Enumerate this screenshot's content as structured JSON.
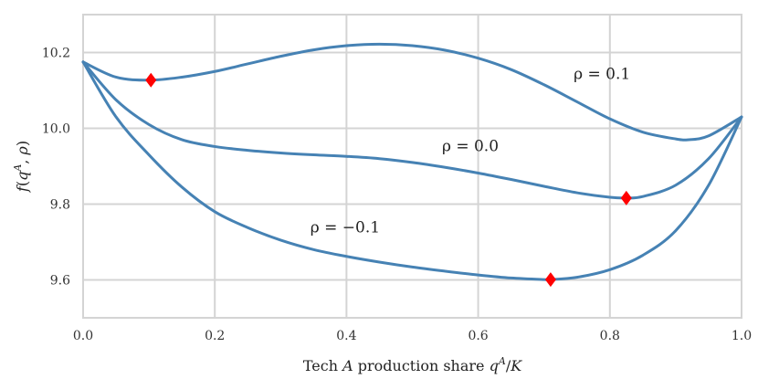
{
  "chart_data": {
    "type": "line",
    "xlabel": "Tech A production share q^A/K",
    "ylabel": "f(q^A, ρ)",
    "xlim": [
      0,
      1
    ],
    "ylim": [
      9.5,
      10.3
    ],
    "xticks": [
      0,
      0.2,
      0.4,
      0.6,
      0.8,
      1
    ],
    "xtick_labels": [
      "0.0",
      "0.2",
      "0.4",
      "0.6",
      "0.8",
      "1.0"
    ],
    "yticks": [
      9.6,
      9.8,
      10.0,
      10.2
    ],
    "ytick_labels": [
      "9.6",
      "9.8",
      "10.0",
      "10.2"
    ],
    "grid": true,
    "line_color": "#4682b4",
    "marker_color": "#ff0000",
    "marker_shape": "diamond",
    "series": [
      {
        "name": "ρ = 0.1",
        "x": [
          0,
          0.05,
          0.1,
          0.15,
          0.2,
          0.25,
          0.3,
          0.35,
          0.4,
          0.45,
          0.5,
          0.55,
          0.6,
          0.65,
          0.7,
          0.75,
          0.8,
          0.85,
          0.9,
          0.92,
          0.95,
          1.0
        ],
        "y": [
          10.175,
          10.135,
          10.127,
          10.135,
          10.15,
          10.17,
          10.19,
          10.207,
          10.218,
          10.222,
          10.218,
          10.206,
          10.185,
          10.155,
          10.115,
          10.07,
          10.025,
          9.99,
          9.972,
          9.97,
          9.98,
          10.03
        ],
        "minimum": {
          "x": 0.103,
          "y": 10.127
        }
      },
      {
        "name": "ρ = 0.0",
        "x": [
          0,
          0.05,
          0.1,
          0.15,
          0.2,
          0.25,
          0.3,
          0.35,
          0.4,
          0.45,
          0.5,
          0.55,
          0.6,
          0.65,
          0.7,
          0.75,
          0.8,
          0.825,
          0.85,
          0.9,
          0.95,
          1.0
        ],
        "y": [
          10.175,
          10.075,
          10.01,
          9.97,
          9.952,
          9.942,
          9.935,
          9.93,
          9.926,
          9.92,
          9.91,
          9.897,
          9.882,
          9.865,
          9.847,
          9.83,
          9.818,
          9.816,
          9.82,
          9.85,
          9.92,
          10.03
        ],
        "minimum": {
          "x": 0.825,
          "y": 9.816
        }
      },
      {
        "name": "ρ = −0.1",
        "x": [
          0,
          0.05,
          0.1,
          0.15,
          0.2,
          0.25,
          0.3,
          0.35,
          0.4,
          0.45,
          0.5,
          0.55,
          0.6,
          0.65,
          0.7,
          0.71,
          0.75,
          0.8,
          0.85,
          0.9,
          0.95,
          1.0
        ],
        "y": [
          10.175,
          10.03,
          9.93,
          9.845,
          9.78,
          9.738,
          9.705,
          9.68,
          9.662,
          9.647,
          9.634,
          9.623,
          9.613,
          9.605,
          9.601,
          9.601,
          9.607,
          9.627,
          9.665,
          9.73,
          9.85,
          10.03
        ],
        "minimum": {
          "x": 0.71,
          "y": 9.601
        }
      }
    ],
    "annotations": [
      {
        "text": "ρ = 0.1",
        "x": 0.745,
        "y": 10.13
      },
      {
        "text": "ρ = 0.0",
        "x": 0.545,
        "y": 9.94
      },
      {
        "text": "ρ = −0.1",
        "x": 0.345,
        "y": 9.725
      }
    ]
  }
}
